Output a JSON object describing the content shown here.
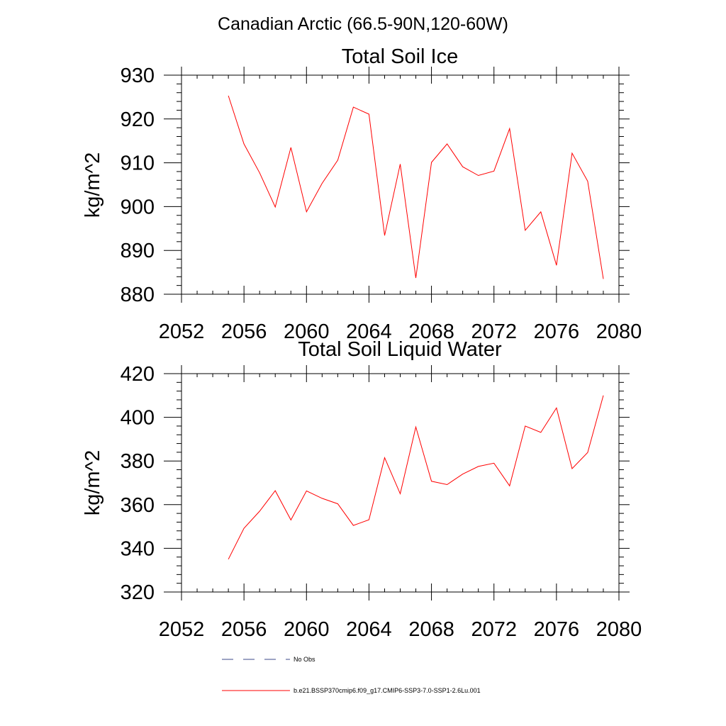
{
  "figure": {
    "title": "Canadian Arctic (66.5-90N,120-60W)"
  },
  "colors": {
    "series": "#ff0000",
    "no_obs": "#3b4a8a"
  },
  "legend": {
    "no_obs_label": "No Obs",
    "series_label": "b.e21.BSSP370cmip6.f09_g17.CMIP6-SSP3-7.0-SSP1-2.6Lu.001"
  },
  "chart_data": [
    {
      "type": "line",
      "title": "Total Soil Ice",
      "xlabel": "",
      "ylabel": "kg/m^2",
      "xlim": [
        2052,
        2080
      ],
      "ylim": [
        880,
        930
      ],
      "xticks": [
        2052,
        2056,
        2060,
        2064,
        2068,
        2072,
        2076,
        2080
      ],
      "yticks": [
        880,
        890,
        900,
        910,
        920,
        930
      ],
      "x_minor_step": 1,
      "y_minor_step": 2,
      "grid": false,
      "series": [
        {
          "name": "b.e21.BSSP370cmip6.f09_g17.CMIP6-SSP3-7.0-SSP1-2.6Lu.001",
          "x": [
            2055,
            2056,
            2057,
            2058,
            2059,
            2060,
            2061,
            2062,
            2063,
            2064,
            2065,
            2066,
            2067,
            2068,
            2069,
            2070,
            2071,
            2072,
            2073,
            2074,
            2075,
            2076,
            2077,
            2078,
            2079
          ],
          "values": [
            925.3,
            914.3,
            907.7,
            899.9,
            913.5,
            898.8,
            905.3,
            910.6,
            922.7,
            921.1,
            893.4,
            909.7,
            883.7,
            910.1,
            914.3,
            909.1,
            907.1,
            908.1,
            917.8,
            894.6,
            898.8,
            886.6,
            912.2,
            905.8,
            883.5
          ]
        }
      ]
    },
    {
      "type": "line",
      "title": "Total Soil Liquid Water",
      "xlabel": "",
      "ylabel": "kg/m^2",
      "xlim": [
        2052,
        2080
      ],
      "ylim": [
        320,
        420
      ],
      "xticks": [
        2052,
        2056,
        2060,
        2064,
        2068,
        2072,
        2076,
        2080
      ],
      "yticks": [
        320,
        340,
        360,
        380,
        400,
        420
      ],
      "x_minor_step": 1,
      "y_minor_step": 4,
      "grid": false,
      "series": [
        {
          "name": "b.e21.BSSP370cmip6.f09_g17.CMIP6-SSP3-7.0-SSP1-2.6Lu.001",
          "x": [
            2055,
            2056,
            2057,
            2058,
            2059,
            2060,
            2061,
            2062,
            2063,
            2064,
            2065,
            2066,
            2067,
            2068,
            2069,
            2070,
            2071,
            2072,
            2073,
            2074,
            2075,
            2076,
            2077,
            2078,
            2079
          ],
          "values": [
            335.0,
            349.2,
            357.0,
            366.4,
            353.0,
            366.3,
            362.9,
            360.4,
            350.5,
            353.1,
            381.5,
            365.0,
            395.6,
            370.7,
            369.2,
            374.0,
            377.5,
            379.0,
            368.6,
            396.0,
            393.1,
            404.3,
            376.5,
            383.9,
            410.0
          ]
        }
      ]
    }
  ]
}
